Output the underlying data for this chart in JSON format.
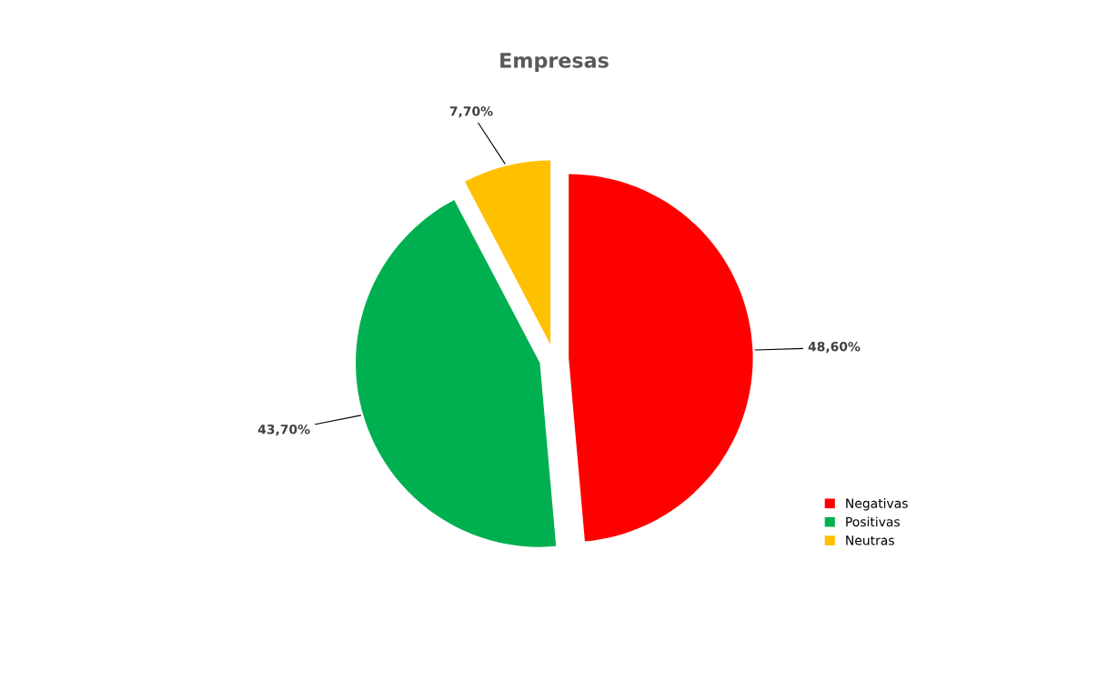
{
  "chart_data": {
    "type": "pie",
    "title": "Empresas",
    "categories": [
      "Negativas",
      "Positivas",
      "Neutras"
    ],
    "values": [
      48.6,
      43.7,
      7.7
    ],
    "colors": [
      "#ff0000",
      "#00b050",
      "#ffc000"
    ],
    "value_labels": [
      "48,60%",
      "43,70%",
      "7,70%"
    ],
    "legend": "bottom right"
  }
}
